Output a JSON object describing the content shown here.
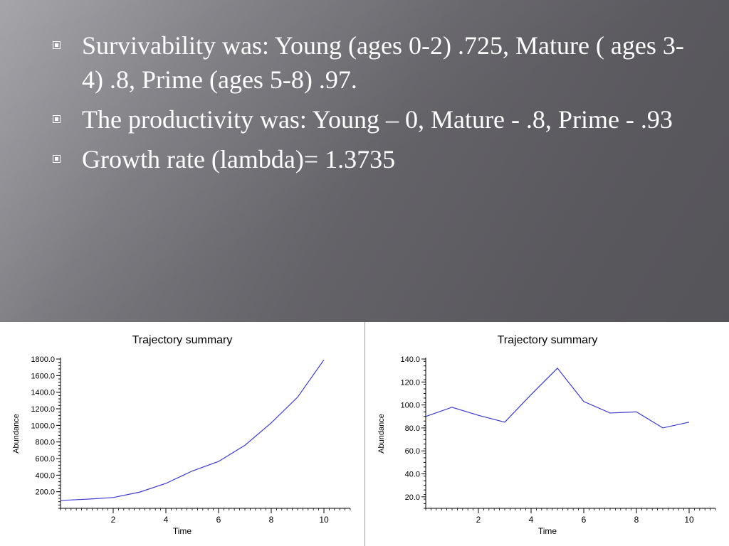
{
  "slide": {
    "bullets": [
      {
        "text": "Survivability was: Young (ages 0-2) .725, Mature ( ages 3-4) .8, Prime (ages 5-8) .97."
      },
      {
        "text": "The productivity was: Young – 0, Mature - .8, Prime - .93"
      },
      {
        "text": "Growth rate (lambda)= 1.3735"
      }
    ]
  },
  "chart_data": [
    {
      "type": "line",
      "title": "Trajectory summary",
      "xlabel": "Time",
      "ylabel": "Abundance",
      "xlim": [
        0,
        11
      ],
      "ylim": [
        0,
        1800
      ],
      "xticks": [
        2,
        4,
        6,
        8,
        10
      ],
      "yticks": [
        200,
        400,
        600,
        800,
        1000,
        1200,
        1400,
        1600,
        1800
      ],
      "ytick_labels": [
        "200.0",
        "400.0",
        "600.0",
        "800.0",
        "1000.0",
        "1200.0",
        "1400.0",
        "1600.0",
        "1800.0"
      ],
      "line_color": "#3a3ad6",
      "x": [
        0,
        1,
        2,
        3,
        4,
        5,
        6,
        7,
        8,
        9,
        10
      ],
      "y": [
        95,
        110,
        130,
        195,
        300,
        450,
        565,
        760,
        1030,
        1340,
        1790
      ]
    },
    {
      "type": "line",
      "title": "Trajectory summary",
      "xlabel": "Time",
      "ylabel": "Abundance",
      "xlim": [
        0,
        11
      ],
      "ylim": [
        10,
        140
      ],
      "xticks": [
        2,
        4,
        6,
        8,
        10
      ],
      "yticks": [
        20,
        40,
        60,
        80,
        100,
        120,
        140
      ],
      "ytick_labels": [
        "20.0",
        "40.0",
        "60.0",
        "80.0",
        "100.0",
        "120.0",
        "140.0"
      ],
      "line_color": "#3a3ad6",
      "x": [
        0,
        1,
        2,
        3,
        4,
        5,
        6,
        7,
        8,
        9,
        10
      ],
      "y": [
        90,
        98,
        91,
        85,
        109,
        132,
        103,
        93,
        94,
        80,
        85
      ]
    }
  ]
}
